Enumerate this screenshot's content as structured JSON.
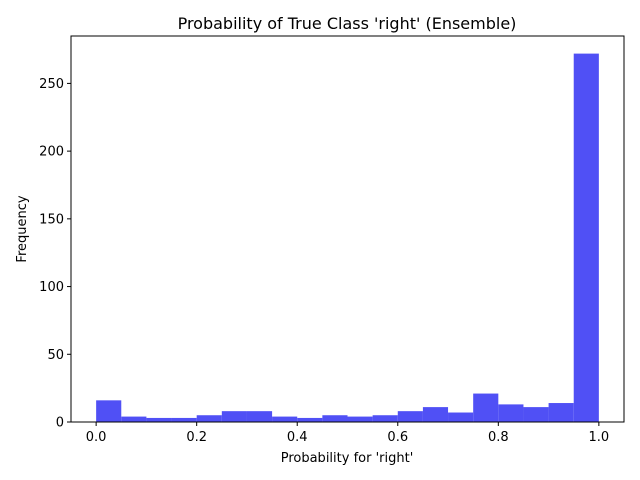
{
  "chart_data": {
    "type": "bar",
    "title": "Probability of True Class 'right' (Ensemble)",
    "xlabel": "Probability for 'right'",
    "ylabel": "Frequency",
    "xlim": [
      -0.05,
      1.05
    ],
    "ylim": [
      0,
      285
    ],
    "xticks": [
      0.0,
      0.2,
      0.4,
      0.6,
      0.8,
      1.0
    ],
    "xtick_labels": [
      "0.0",
      "0.2",
      "0.4",
      "0.6",
      "0.8",
      "1.0"
    ],
    "yticks": [
      0,
      50,
      100,
      150,
      200,
      250
    ],
    "ytick_labels": [
      "0",
      "50",
      "100",
      "150",
      "200",
      "250"
    ],
    "bin_edges": [
      0.0,
      0.05,
      0.1,
      0.15,
      0.2,
      0.25,
      0.3,
      0.35,
      0.4,
      0.45,
      0.5,
      0.55,
      0.6,
      0.65,
      0.7,
      0.75,
      0.8,
      0.85,
      0.9,
      0.95,
      1.0
    ],
    "values": [
      16,
      4,
      3,
      3,
      5,
      8,
      8,
      4,
      3,
      5,
      4,
      5,
      8,
      11,
      7,
      21,
      13,
      11,
      14,
      272
    ],
    "bar_color": "#5050f5",
    "grid": false,
    "legend": false
  }
}
